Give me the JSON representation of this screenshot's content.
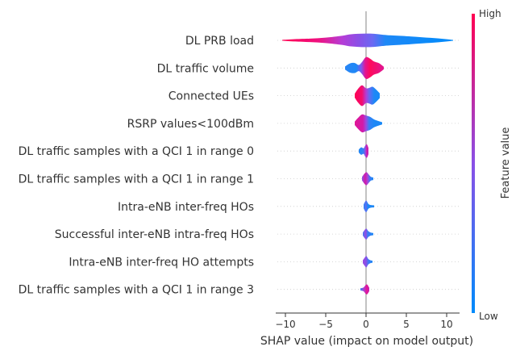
{
  "chart_data": {
    "type": "violin",
    "title": "",
    "xlabel": "SHAP value (impact on model output)",
    "x_ticks": [
      -10,
      -5,
      0,
      5,
      10
    ],
    "x_tick_labels": [
      "−10",
      "−5",
      "0",
      "5",
      "10"
    ],
    "xlim": [
      -11.2,
      11.6
    ],
    "features": [
      {
        "name": "DL PRB load",
        "range": [
          -10.4,
          10.8
        ],
        "shape": [
          [
            -10.4,
            0.04
          ],
          [
            -9,
            0.1
          ],
          [
            -7,
            0.16
          ],
          [
            -5,
            0.25
          ],
          [
            -3,
            0.42
          ],
          [
            -2,
            0.55
          ],
          [
            -1,
            0.6
          ],
          [
            0,
            0.62
          ],
          [
            1,
            0.6
          ],
          [
            2,
            0.52
          ],
          [
            3,
            0.46
          ],
          [
            5,
            0.38
          ],
          [
            7,
            0.28
          ],
          [
            9,
            0.18
          ],
          [
            10.8,
            0.04
          ]
        ],
        "color_stops": [
          [
            -10.4,
            "#ff0052"
          ],
          [
            -6,
            "#f0107e"
          ],
          [
            -3,
            "#b63cd6"
          ],
          [
            -1,
            "#8c4fe6"
          ],
          [
            0.8,
            "#6b68f2"
          ],
          [
            2.4,
            "#1e88f6"
          ],
          [
            10.8,
            "#008bfb"
          ]
        ]
      },
      {
        "name": "DL traffic volume",
        "range": [
          -2.6,
          2.2
        ],
        "shape": [
          [
            -2.6,
            0.14
          ],
          [
            -2,
            0.42
          ],
          [
            -1.4,
            0.46
          ],
          [
            -0.9,
            0.28
          ],
          [
            -0.5,
            0.55
          ],
          [
            0,
            1
          ],
          [
            0.5,
            0.86
          ],
          [
            1,
            0.6
          ],
          [
            1.6,
            0.45
          ],
          [
            2.2,
            0.12
          ]
        ],
        "color_stops": [
          [
            -2.6,
            "#2a86f5"
          ],
          [
            -1.2,
            "#1e88f6"
          ],
          [
            -0.6,
            "#7b5aef"
          ],
          [
            -0.1,
            "#e21593"
          ],
          [
            0.5,
            "#ff0a5c"
          ],
          [
            1.2,
            "#f00f72"
          ],
          [
            2.2,
            "#e11693"
          ]
        ]
      },
      {
        "name": "Connected UEs",
        "range": [
          -1.4,
          1.7
        ],
        "shape": [
          [
            -1.4,
            0.18
          ],
          [
            -1,
            0.62
          ],
          [
            -0.5,
            0.95
          ],
          [
            0,
            0.68
          ],
          [
            0.4,
            0.72
          ],
          [
            0.8,
            0.82
          ],
          [
            1.2,
            0.6
          ],
          [
            1.7,
            0.22
          ]
        ],
        "color_stops": [
          [
            -1.4,
            "#ff0052"
          ],
          [
            -0.5,
            "#f20e70"
          ],
          [
            0,
            "#b33dd5"
          ],
          [
            0.4,
            "#6967f1"
          ],
          [
            1,
            "#1e88f6"
          ],
          [
            1.7,
            "#168af8"
          ]
        ]
      },
      {
        "name": "RSRP values<100dBm",
        "range": [
          -1.4,
          2
        ],
        "shape": [
          [
            -1.4,
            0.16
          ],
          [
            -1,
            0.5
          ],
          [
            -0.5,
            0.82
          ],
          [
            0,
            0.72
          ],
          [
            0.5,
            0.6
          ],
          [
            1,
            0.36
          ],
          [
            1.5,
            0.22
          ],
          [
            2,
            0.1
          ]
        ],
        "color_stops": [
          [
            -1.4,
            "#e01596"
          ],
          [
            -0.4,
            "#d21aa8"
          ],
          [
            0,
            "#9b4ae0"
          ],
          [
            0.4,
            "#3580f5"
          ],
          [
            1,
            "#1e88f6"
          ],
          [
            2,
            "#1889f7"
          ]
        ]
      },
      {
        "name": "DL traffic samples with a QCI 1 in range 0",
        "range": [
          -0.9,
          0.3
        ],
        "shape": [
          [
            -0.9,
            0.14
          ],
          [
            -0.6,
            0.34
          ],
          [
            -0.3,
            0.26
          ],
          [
            -0.1,
            0.5
          ],
          [
            0.1,
            0.62
          ],
          [
            0.3,
            0.3
          ]
        ],
        "color_stops": [
          [
            -0.9,
            "#1f88f6"
          ],
          [
            -0.3,
            "#3c7df4"
          ],
          [
            -0.05,
            "#a147de"
          ],
          [
            0.1,
            "#d11aa8"
          ],
          [
            0.3,
            "#c022bb"
          ]
        ]
      },
      {
        "name": "DL traffic samples with a QCI 1 in range 1",
        "range": [
          -0.5,
          0.9
        ],
        "shape": [
          [
            -0.5,
            0.16
          ],
          [
            -0.2,
            0.46
          ],
          [
            0.05,
            0.6
          ],
          [
            0.3,
            0.42
          ],
          [
            0.6,
            0.18
          ],
          [
            0.9,
            0.12
          ]
        ],
        "color_stops": [
          [
            -0.5,
            "#8c4fe6"
          ],
          [
            -0.1,
            "#d31aa6"
          ],
          [
            0.2,
            "#a646dc"
          ],
          [
            0.5,
            "#3a7ef4"
          ],
          [
            0.9,
            "#1e88f6"
          ]
        ]
      },
      {
        "name": "Intra-eNB inter-freq HOs",
        "range": [
          -0.3,
          1
        ],
        "shape": [
          [
            -0.3,
            0.18
          ],
          [
            -0.1,
            0.46
          ],
          [
            0.05,
            0.52
          ],
          [
            0.3,
            0.22
          ],
          [
            0.6,
            0.12
          ],
          [
            1,
            0.1
          ]
        ],
        "color_stops": [
          [
            -0.3,
            "#2a84f6"
          ],
          [
            0,
            "#5e6ef2"
          ],
          [
            0.2,
            "#1e88f6"
          ],
          [
            1,
            "#1e88f6"
          ]
        ]
      },
      {
        "name": "Successful inter-eNB intra-freq HOs",
        "range": [
          -0.4,
          0.9
        ],
        "shape": [
          [
            -0.4,
            0.14
          ],
          [
            -0.1,
            0.44
          ],
          [
            0.05,
            0.5
          ],
          [
            0.3,
            0.26
          ],
          [
            0.6,
            0.14
          ],
          [
            0.9,
            0.1
          ]
        ],
        "color_stops": [
          [
            -0.4,
            "#4777f3"
          ],
          [
            -0.05,
            "#9a4ae0"
          ],
          [
            0.2,
            "#3d7cf4"
          ],
          [
            0.9,
            "#1e88f6"
          ]
        ]
      },
      {
        "name": "Intra-eNB inter-freq HO attempts",
        "range": [
          -0.4,
          0.8
        ],
        "shape": [
          [
            -0.4,
            0.14
          ],
          [
            -0.1,
            0.44
          ],
          [
            0.05,
            0.52
          ],
          [
            0.3,
            0.24
          ],
          [
            0.6,
            0.12
          ],
          [
            0.8,
            0.1
          ]
        ],
        "color_stops": [
          [
            -0.4,
            "#9a4ae0"
          ],
          [
            0,
            "#8a50e6"
          ],
          [
            0.3,
            "#3d7cf4"
          ],
          [
            0.8,
            "#1e88f6"
          ]
        ]
      },
      {
        "name": "DL traffic samples with a QCI 1 in range 3",
        "range": [
          -0.7,
          0.4
        ],
        "shape": [
          [
            -0.7,
            0.1
          ],
          [
            -0.3,
            0.18
          ],
          [
            -0.05,
            0.4
          ],
          [
            0.15,
            0.44
          ],
          [
            0.4,
            0.16
          ]
        ],
        "color_stops": [
          [
            -0.7,
            "#3c7df4"
          ],
          [
            -0.2,
            "#b936c9"
          ],
          [
            0.1,
            "#e61590"
          ],
          [
            0.4,
            "#c022bb"
          ]
        ]
      }
    ],
    "colorbar": {
      "label": "Feature value",
      "high_label": "High",
      "low_label": "Low",
      "color_high": "#ff0052",
      "color_mid": "#8a50e6",
      "color_low": "#008bfb"
    },
    "zero_line_color": "#999999",
    "row_grid_color": "#cccccc"
  }
}
